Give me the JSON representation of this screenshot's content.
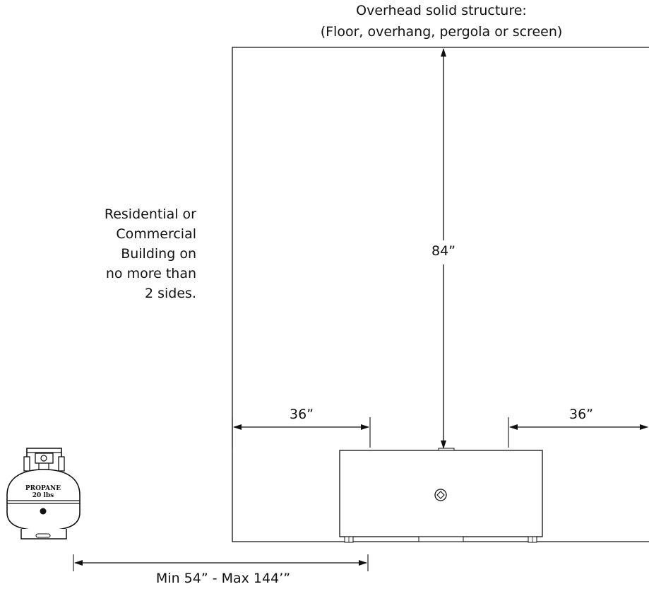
{
  "header": {
    "line1": "Overhead solid structure:",
    "line2": "(Floor, overhang, pergola or screen)"
  },
  "building_note": {
    "lines": [
      "Residential or",
      "Commercial",
      "Building on",
      "no more than",
      "2 sides."
    ]
  },
  "dimensions": {
    "overhead_clearance": "84”",
    "left_clearance": "36”",
    "right_clearance": "36”",
    "tank_distance": "Min 54” - Max 144’”"
  },
  "tank": {
    "line1": "PROPANE",
    "line2": "20 lbs"
  },
  "colors": {
    "line": "#111111",
    "background": "#ffffff"
  }
}
